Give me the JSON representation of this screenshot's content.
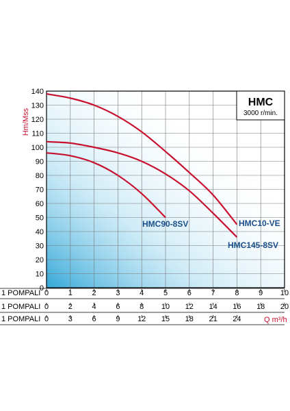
{
  "chart_data": {
    "type": "line",
    "title": "HMC",
    "subtitle": "3000 r/min.",
    "ylabel": "Hm/Mss",
    "xlabel": "Q m³/h",
    "ylim": [
      0,
      140
    ],
    "yticks": [
      "0",
      "10",
      "20",
      "30",
      "40",
      "50",
      "60",
      "70",
      "80",
      "90",
      "100",
      "110",
      "120",
      "130",
      "140"
    ],
    "grid": true,
    "xlim": [
      0,
      10
    ],
    "x_rows": [
      {
        "label": "1 POMPALI",
        "ticks": [
          "0",
          "1",
          "2",
          "3",
          "4",
          "5",
          "6",
          "7",
          "8",
          "9",
          "10"
        ]
      },
      {
        "label": "1 POMPALI",
        "ticks": [
          "0",
          "2",
          "4",
          "6",
          "8",
          "10",
          "12",
          "14",
          "16",
          "18",
          "20"
        ]
      },
      {
        "label": "1 POMPALI",
        "ticks": [
          "0",
          "3",
          "6",
          "9",
          "12",
          "15",
          "18",
          "21",
          "24"
        ]
      }
    ],
    "series": [
      {
        "name": "HMC10-VE",
        "points": [
          [
            0,
            138
          ],
          [
            1,
            135
          ],
          [
            2,
            130
          ],
          [
            3,
            122
          ],
          [
            4,
            111
          ],
          [
            5,
            97
          ],
          [
            6,
            82
          ],
          [
            7,
            66
          ],
          [
            8,
            45
          ]
        ]
      },
      {
        "name": "HMC145-8SV",
        "points": [
          [
            0,
            104
          ],
          [
            1,
            103
          ],
          [
            2,
            100
          ],
          [
            3,
            96
          ],
          [
            4,
            90
          ],
          [
            5,
            81
          ],
          [
            6,
            69
          ],
          [
            7,
            53
          ],
          [
            8,
            36
          ]
        ]
      },
      {
        "name": "HMC90-8SV",
        "points": [
          [
            0,
            96
          ],
          [
            1,
            94
          ],
          [
            2,
            89
          ],
          [
            3,
            80
          ],
          [
            4,
            67
          ],
          [
            5,
            50
          ]
        ]
      }
    ],
    "colors": {
      "curve": "#c8102e",
      "series_label": "#1a4f8c",
      "axis_label": "#c8102e",
      "gradient": "#29a3d6"
    }
  }
}
